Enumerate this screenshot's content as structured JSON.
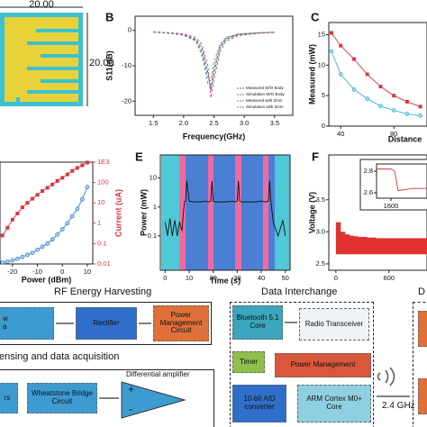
{
  "antenna": {
    "width": "20.00",
    "height": "20.00"
  },
  "chart_data": [
    {
      "type": "line",
      "label": "B",
      "xlabel": "Frequency(GHz)",
      "ylabel": "S11(dB)",
      "x": [
        1.5,
        1.8,
        2.0,
        2.2,
        2.3,
        2.4,
        2.45,
        2.5,
        2.6,
        2.7,
        2.9,
        3.2,
        3.5
      ],
      "xlim": [
        1.2,
        3.8
      ],
      "xticks": [
        {
          "value": 1.5,
          "label": "1.5"
        },
        {
          "value": 2,
          "label": "2.0"
        },
        {
          "value": 2.5,
          "label": "2.5"
        },
        {
          "value": 3,
          "label": "3.0"
        },
        {
          "value": 3.5,
          "label": "3.5"
        }
      ],
      "ylim": [
        -24,
        4
      ],
      "yticks": [
        0,
        -10,
        -20
      ],
      "legend": "lower right",
      "series": [
        {
          "name": "Measured W/O Body",
          "color": "#3b6fb6",
          "dash": true,
          "values": [
            -0.5,
            -0.8,
            -1.2,
            -2.5,
            -5,
            -12,
            -17,
            -12,
            -5,
            -2.5,
            -1.2,
            -0.8,
            -0.5
          ]
        },
        {
          "name": "Simulation W/O Body",
          "color": "#d9534f",
          "dash": true,
          "values": [
            -0.4,
            -0.7,
            -1,
            -2,
            -4,
            -10,
            -19,
            -14,
            -6,
            -3,
            -1.5,
            -0.9,
            -0.6
          ]
        },
        {
          "name": "Measured with 2mm",
          "color": "#4caf50",
          "dash": true,
          "values": [
            -0.5,
            -0.9,
            -1.4,
            -3,
            -7,
            -15,
            -14,
            -9,
            -4,
            -2,
            -1,
            -0.7,
            -0.5
          ]
        },
        {
          "name": "Simulation with 2mm",
          "color": "#8e6bbf",
          "dash": true,
          "values": [
            -0.4,
            -0.8,
            -1.3,
            -2.8,
            -6,
            -13,
            -16,
            -11,
            -4.5,
            -2.2,
            -1.1,
            -0.7,
            -0.5
          ]
        }
      ]
    },
    {
      "type": "line",
      "label": "C",
      "xlabel": "Distance",
      "ylabel": "Measured (mW)",
      "x": [
        33,
        40,
        50,
        60,
        70,
        80,
        90,
        100
      ],
      "xlim": [
        31,
        105
      ],
      "xticks": [
        40,
        80
      ],
      "ylim": [
        0,
        17
      ],
      "yticks": [
        0,
        5,
        10,
        15
      ],
      "series": [
        {
          "color": "#d9363e",
          "marker": "square",
          "values": [
            15.3,
            13.2,
            11,
            8.5,
            6.5,
            5,
            4,
            3.2
          ]
        },
        {
          "color": "#3bb5d6",
          "marker": "circle",
          "values": [
            12.3,
            8.5,
            6,
            4.5,
            3.3,
            2.6,
            2,
            1.7
          ]
        }
      ]
    },
    {
      "type": "line",
      "xlabel": "Power (dBm)",
      "y2label": "Current (uA)",
      "x": [
        -24,
        -22,
        -20,
        -18,
        -16,
        -14,
        -12,
        -10,
        -8,
        -6,
        -4,
        -2,
        0,
        2,
        4,
        6,
        8,
        10
      ],
      "xlim": [
        -25,
        12.2
      ],
      "xticks": [
        -20,
        -10,
        0,
        10
      ],
      "y2lim": [
        0.01,
        1000
      ],
      "y2log": true,
      "y2ticks": [
        0.01,
        0.1,
        1,
        10,
        100,
        {
          "value": 1000,
          "label": "1E3"
        }
      ],
      "series": [
        {
          "color": "#d9363e",
          "marker": "square",
          "axis": "y2",
          "values": [
            0.25,
            0.6,
            1.5,
            3,
            6,
            10,
            16,
            25,
            38,
            55,
            80,
            120,
            170,
            250,
            370,
            520,
            700,
            950
          ]
        },
        {
          "color": "#3b78c4",
          "marker": "circle",
          "axis": "y2",
          "values": [
            0.012,
            0.013,
            0.015,
            0.018,
            0.022,
            0.028,
            0.035,
            0.05,
            0.07,
            0.1,
            0.16,
            0.28,
            0.5,
            1,
            2.2,
            5,
            15,
            60
          ]
        }
      ]
    },
    {
      "type": "line",
      "label": "E",
      "xlabel": "Time (s)",
      "ylabel": "Power (mW)",
      "x": [
        0,
        1,
        2,
        3,
        4,
        5,
        6,
        7,
        8,
        8.5,
        9,
        10,
        12,
        15,
        17,
        18,
        19,
        19.5,
        20,
        21,
        23,
        26,
        28,
        29,
        30,
        30.5,
        31,
        32,
        35,
        38,
        40,
        42,
        43,
        43.5,
        44,
        45,
        47,
        49,
        50
      ],
      "xlim": [
        -2,
        52
      ],
      "xticks": [
        0,
        10,
        20,
        30,
        40,
        50
      ],
      "ylim": [
        0.0065,
        63
      ],
      "ylog": true,
      "yticks": [
        0.1,
        1,
        10
      ],
      "series": [
        {
          "color": "#111111",
          "values": [
            0.3,
            0.1,
            0.4,
            0.1,
            0.35,
            0.1,
            0.3,
            0.15,
            1.5,
            1.6,
            8,
            1.6,
            1.5,
            1.5,
            1.6,
            1.5,
            1.6,
            8,
            1.6,
            1.5,
            1.5,
            1.5,
            1.6,
            1.5,
            1.6,
            8,
            1.6,
            1.5,
            1.5,
            1.5,
            1.6,
            1.5,
            1.6,
            8,
            1.6,
            0.3,
            0.1,
            0.35,
            0.1
          ]
        }
      ]
    },
    {
      "type": "band",
      "label": "F",
      "ylabel": "Voltage (V)",
      "x": [
        0,
        50,
        100,
        150,
        200,
        250,
        300,
        350,
        400,
        450,
        500,
        550,
        600,
        650,
        700,
        750,
        800,
        850,
        900,
        950,
        1000
      ],
      "xlim": [
        -80,
        1030
      ],
      "xticks": [
        0,
        600
      ],
      "ylim": [
        2.4,
        4.2
      ],
      "yticks": [
        2.5,
        {
          "value": 3,
          "label": "3.0"
        },
        3.5
      ],
      "series": [
        {
          "color": "#e03030",
          "values": [
            3.15,
            3.0,
            2.96,
            2.94,
            2.93,
            2.92,
            2.92,
            2.91,
            2.91,
            2.9,
            2.9,
            2.9,
            2.9,
            2.9,
            2.9,
            2.9,
            2.9,
            2.9,
            2.9,
            2.9,
            2.9
          ]
        },
        {
          "color": "#e03030",
          "values": [
            2.65,
            2.65,
            2.65,
            2.65,
            2.65,
            2.65,
            2.65,
            2.65,
            2.65,
            2.65,
            2.65,
            2.65,
            2.65,
            2.65,
            2.65,
            2.65,
            2.65,
            2.65,
            2.65,
            2.65,
            2.65
          ]
        }
      ]
    },
    {
      "type": "line",
      "x": [
        1560,
        1580,
        1600,
        1610,
        1620,
        1640,
        1660,
        1680,
        1700
      ],
      "xlim": [
        1560,
        1700
      ],
      "xticks": [
        1600
      ],
      "ylim": [
        2.55,
        2.867
      ],
      "yticks": [
        2.6,
        2.8
      ],
      "series": [
        {
          "color": "#e03030",
          "values": [
            2.82,
            2.82,
            2.82,
            2.8,
            2.62,
            2.63,
            2.64,
            2.64,
            2.64
          ]
        }
      ]
    }
  ],
  "diagram": {
    "rf_title": "RF Energy Harvesting",
    "di_title": "Data Interchange",
    "d_title": "D",
    "antenna_block": [
      "w",
      "a"
    ],
    "rectifier": "Rectifier",
    "pmc": "Power Management Circuit",
    "sensing_title": "ensing and data acquisition",
    "sensor_block": "rs",
    "wheatstone": "Wheatstone Bridge Circuit",
    "diff_amp": "Differential amplifier",
    "plus": "+",
    "minus": "-",
    "bluetooth": "Bluetooth 5.1 Core",
    "radio": "Radio Transceiver",
    "timer": "Timer",
    "pm": "Power Management",
    "adc": "10-bit A/D converter",
    "arm": "ARM Cortex M0+ Core",
    "freq": "2.4 GHz"
  }
}
